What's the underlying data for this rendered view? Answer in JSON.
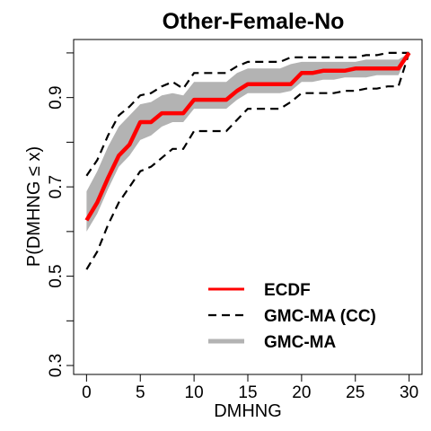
{
  "chart_data": {
    "type": "line",
    "title": "Other-Female-No",
    "xlabel": "DMHNG",
    "ylabel": "P(DMHNG ≤ x)",
    "xlim": [
      -1.2,
      31.2
    ],
    "ylim": [
      0.28,
      1.03
    ],
    "x_ticks": [
      0,
      5,
      10,
      15,
      20,
      25,
      30
    ],
    "y_ticks": [
      0.3,
      0.5,
      0.7,
      0.9
    ],
    "y_minor_ticks": [
      0.4,
      0.6,
      0.8,
      1.0
    ],
    "x_tick_labels": [
      "0",
      "5",
      "10",
      "15",
      "20",
      "25",
      "30"
    ],
    "y_tick_labels": [
      "0.3",
      "0.5",
      "0.7",
      "0.9"
    ],
    "grid": false,
    "legend_position": "bottom-right",
    "legend": [
      {
        "label": "ECDF",
        "color": "#ff0000",
        "style": "solid"
      },
      {
        "label": "GMC-MA (CC)",
        "color": "#000000",
        "style": "dashed"
      },
      {
        "label": "GMC-MA",
        "color": "#b3b3b3",
        "style": "band"
      }
    ],
    "series": [
      {
        "name": "ECDF",
        "x": [
          0,
          1,
          2,
          3,
          4,
          5,
          6,
          7,
          8,
          9,
          10,
          11,
          12,
          13,
          14,
          15,
          16,
          17,
          18,
          19,
          20,
          21,
          22,
          23,
          24,
          25,
          26,
          27,
          28,
          29,
          30
        ],
        "values": [
          0.625,
          0.665,
          0.72,
          0.77,
          0.795,
          0.845,
          0.845,
          0.865,
          0.865,
          0.865,
          0.895,
          0.895,
          0.895,
          0.895,
          0.915,
          0.93,
          0.93,
          0.93,
          0.93,
          0.93,
          0.955,
          0.955,
          0.96,
          0.96,
          0.96,
          0.965,
          0.965,
          0.965,
          0.965,
          0.965,
          1.0
        ]
      },
      {
        "name": "GMC-MA (CC) upper",
        "x": [
          0,
          1,
          2,
          3,
          4,
          5,
          6,
          7,
          8,
          9,
          10,
          11,
          12,
          13,
          14,
          15,
          16,
          17,
          18,
          19,
          20,
          21,
          22,
          23,
          24,
          25,
          26,
          27,
          28,
          29,
          30
        ],
        "values": [
          0.725,
          0.76,
          0.815,
          0.86,
          0.88,
          0.905,
          0.91,
          0.925,
          0.935,
          0.92,
          0.955,
          0.955,
          0.955,
          0.955,
          0.97,
          0.98,
          0.98,
          0.98,
          0.98,
          0.99,
          0.99,
          0.99,
          0.99,
          0.99,
          0.99,
          0.99,
          0.995,
          0.995,
          1.0,
          1.0,
          1.0
        ]
      },
      {
        "name": "GMC-MA (CC) lower",
        "x": [
          0,
          1,
          2,
          3,
          4,
          5,
          6,
          7,
          8,
          9,
          10,
          11,
          12,
          13,
          14,
          15,
          16,
          17,
          18,
          19,
          20,
          21,
          22,
          23,
          24,
          25,
          26,
          27,
          28,
          29,
          30
        ],
        "values": [
          0.515,
          0.555,
          0.615,
          0.665,
          0.7,
          0.735,
          0.745,
          0.765,
          0.785,
          0.785,
          0.825,
          0.825,
          0.825,
          0.825,
          0.85,
          0.875,
          0.875,
          0.875,
          0.875,
          0.89,
          0.91,
          0.91,
          0.91,
          0.91,
          0.915,
          0.915,
          0.92,
          0.92,
          0.925,
          0.925,
          1.0
        ]
      },
      {
        "name": "GMC-MA upper",
        "x": [
          0,
          1,
          2,
          3,
          4,
          5,
          6,
          7,
          8,
          9,
          10,
          11,
          12,
          13,
          14,
          15,
          16,
          17,
          18,
          19,
          20,
          21,
          22,
          23,
          24,
          25,
          26,
          27,
          28,
          29,
          30
        ],
        "values": [
          0.69,
          0.735,
          0.79,
          0.835,
          0.86,
          0.885,
          0.89,
          0.905,
          0.91,
          0.905,
          0.935,
          0.935,
          0.935,
          0.935,
          0.955,
          0.965,
          0.965,
          0.965,
          0.965,
          0.975,
          0.98,
          0.98,
          0.98,
          0.98,
          0.98,
          0.98,
          0.985,
          0.985,
          0.985,
          0.985,
          1.0
        ]
      },
      {
        "name": "GMC-MA lower",
        "x": [
          0,
          1,
          2,
          3,
          4,
          5,
          6,
          7,
          8,
          9,
          10,
          11,
          12,
          13,
          14,
          15,
          16,
          17,
          18,
          19,
          20,
          21,
          22,
          23,
          24,
          25,
          26,
          27,
          28,
          29,
          30
        ],
        "values": [
          0.6,
          0.64,
          0.695,
          0.745,
          0.77,
          0.805,
          0.815,
          0.835,
          0.845,
          0.845,
          0.875,
          0.875,
          0.875,
          0.875,
          0.895,
          0.91,
          0.91,
          0.91,
          0.91,
          0.915,
          0.935,
          0.935,
          0.94,
          0.94,
          0.945,
          0.945,
          0.945,
          0.95,
          0.95,
          0.95,
          1.0
        ]
      }
    ]
  }
}
